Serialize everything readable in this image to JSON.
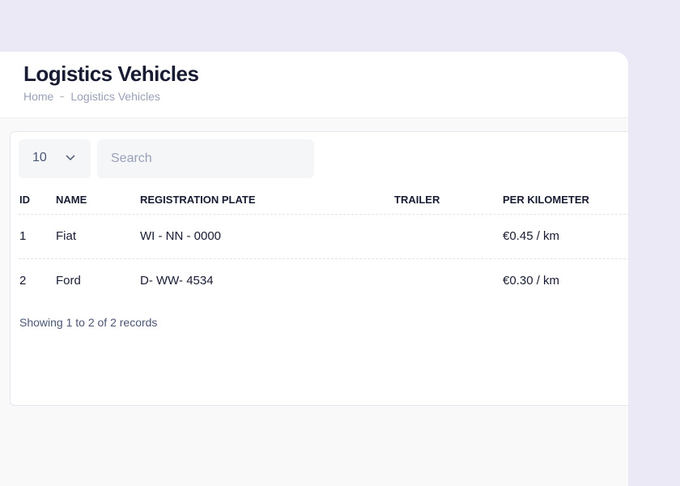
{
  "header": {
    "title": "Logistics Vehicles",
    "breadcrumb": [
      "Home",
      "Logistics Vehicles"
    ]
  },
  "controls": {
    "page_size": 10,
    "search_placeholder": "Search"
  },
  "table": {
    "columns": [
      "ID",
      "NAME",
      "REGISTRATION PLATE",
      "TRAILER",
      "PER KILOMETER"
    ],
    "rows": [
      {
        "id": 1,
        "name": "Fiat",
        "plate": "WI - NN - 0000",
        "per_km": "€0.45 / km"
      },
      {
        "id": 2,
        "name": "Ford",
        "plate": "D- WW- 4534",
        "per_km": "€0.30 / km"
      }
    ]
  },
  "footer": {
    "summary": "Showing 1 to 2 of 2 records"
  }
}
